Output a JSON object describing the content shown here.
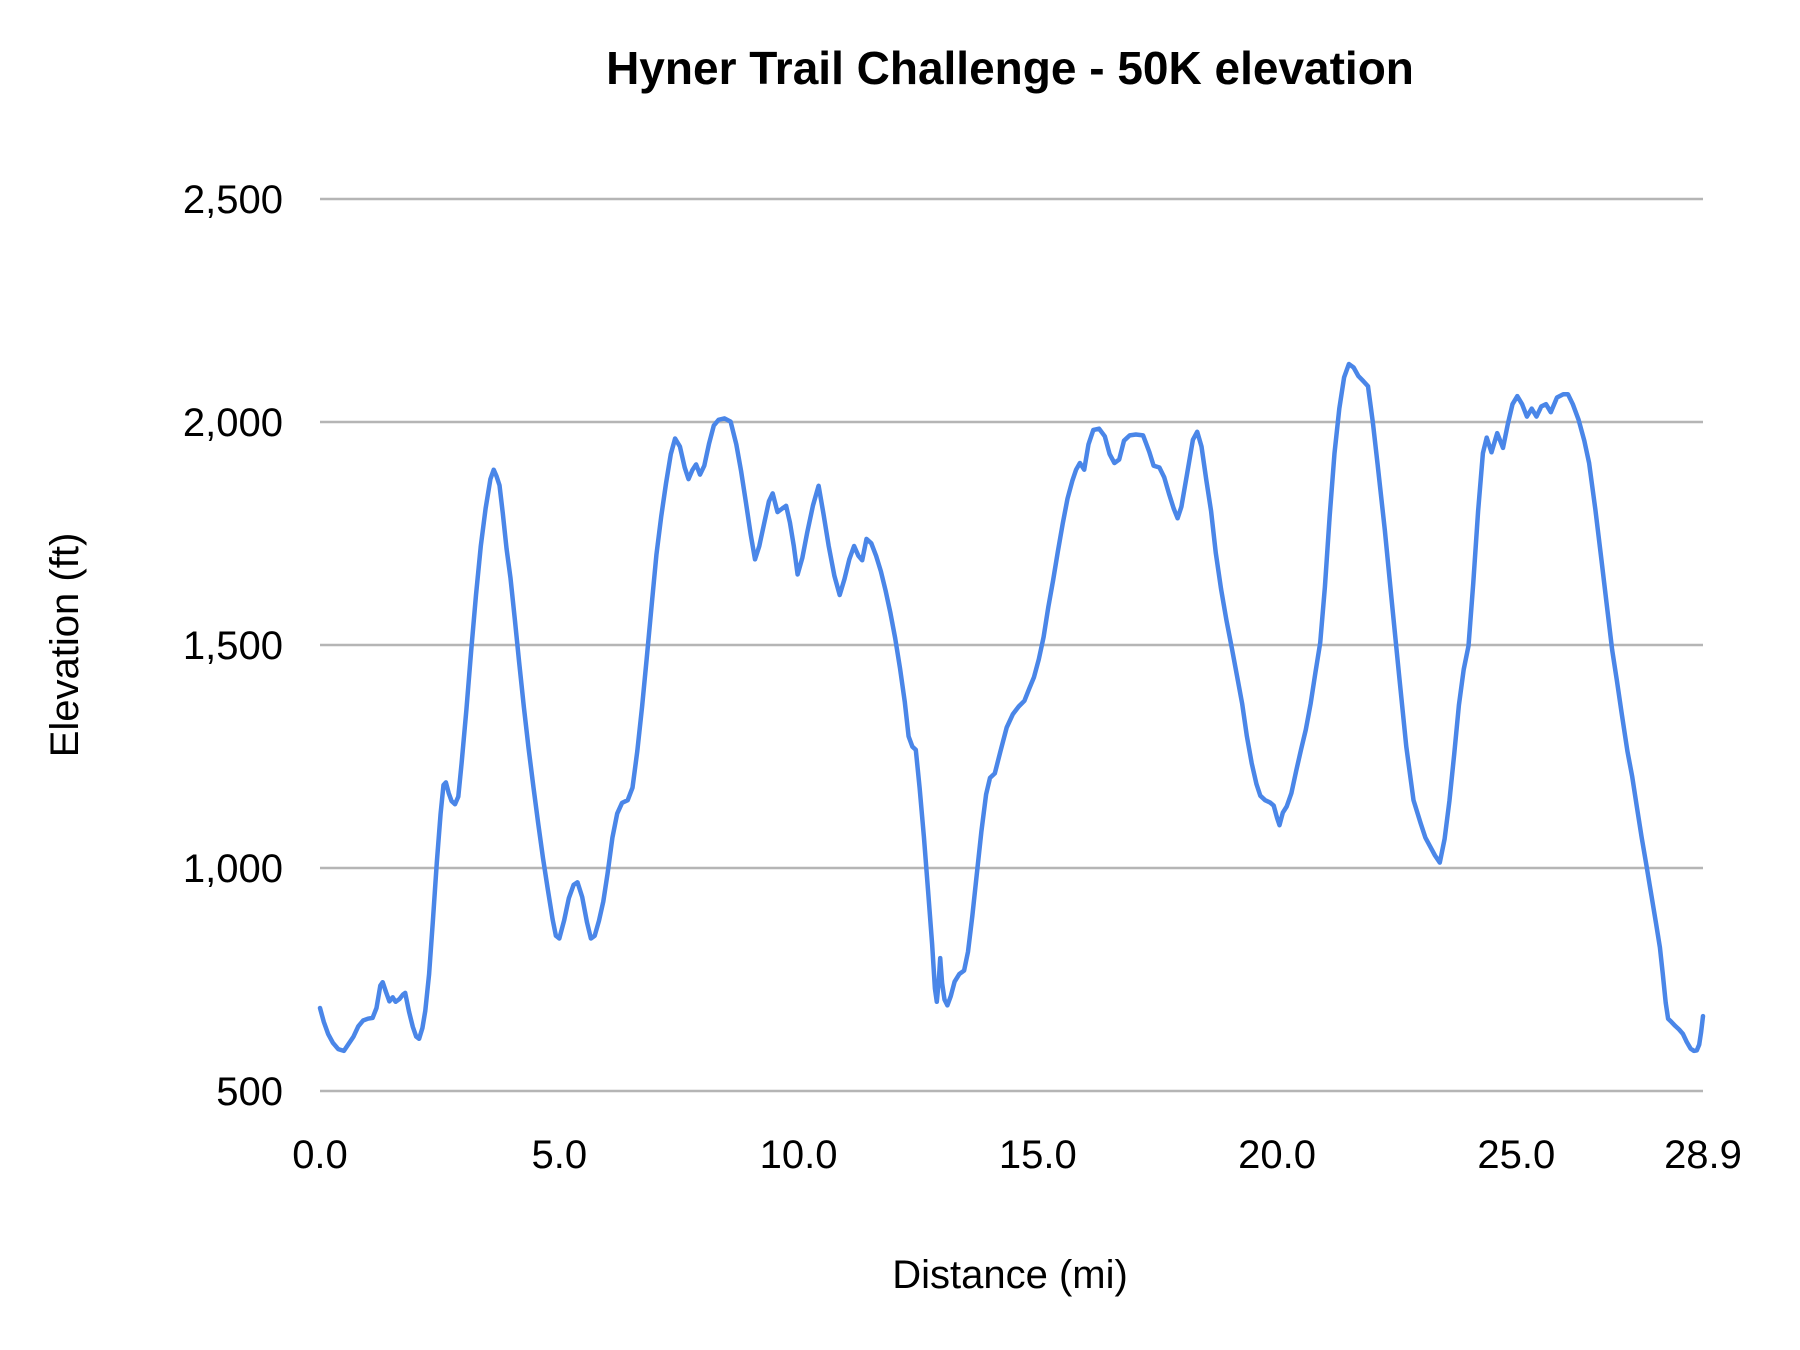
{
  "chart_data": {
    "type": "line",
    "title": "Hyner Trail Challenge - 50K elevation",
    "xlabel": "Distance (mi)",
    "ylabel": "Elevation (ft)",
    "xlim": [
      0,
      28.9
    ],
    "ylim": [
      500,
      2500
    ],
    "grid": "horizontal",
    "legend": "none",
    "colors": {
      "line": "#4a86e8",
      "gridline": "#b5b5b5",
      "text": "#000000",
      "background": "#ffffff"
    },
    "x_ticks": [
      {
        "value": 0,
        "label": "0.0"
      },
      {
        "value": 5,
        "label": "5.0"
      },
      {
        "value": 10,
        "label": "10.0"
      },
      {
        "value": 15,
        "label": "15.0"
      },
      {
        "value": 20,
        "label": "20.0"
      },
      {
        "value": 25,
        "label": "25.0"
      },
      {
        "value": 28.9,
        "label": "28.9"
      }
    ],
    "y_ticks": [
      {
        "value": 500,
        "label": "500"
      },
      {
        "value": 1000,
        "label": "1,000"
      },
      {
        "value": 1500,
        "label": "1,500"
      },
      {
        "value": 2000,
        "label": "2,000"
      },
      {
        "value": 2500,
        "label": "2,500"
      }
    ],
    "series": [
      {
        "name": "elevation",
        "points": [
          [
            0.0,
            686
          ],
          [
            0.08,
            655
          ],
          [
            0.17,
            628
          ],
          [
            0.27,
            608
          ],
          [
            0.38,
            594
          ],
          [
            0.5,
            590
          ],
          [
            0.6,
            606
          ],
          [
            0.7,
            622
          ],
          [
            0.8,
            645
          ],
          [
            0.9,
            658
          ],
          [
            1.0,
            662
          ],
          [
            1.1,
            664
          ],
          [
            1.18,
            686
          ],
          [
            1.26,
            736
          ],
          [
            1.31,
            744
          ],
          [
            1.38,
            722
          ],
          [
            1.45,
            701
          ],
          [
            1.52,
            710
          ],
          [
            1.58,
            700
          ],
          [
            1.66,
            706
          ],
          [
            1.73,
            716
          ],
          [
            1.78,
            720
          ],
          [
            1.86,
            678
          ],
          [
            1.94,
            644
          ],
          [
            2.01,
            622
          ],
          [
            2.07,
            617
          ],
          [
            2.14,
            641
          ],
          [
            2.2,
            680
          ],
          [
            2.28,
            762
          ],
          [
            2.36,
            882
          ],
          [
            2.44,
            1012
          ],
          [
            2.52,
            1122
          ],
          [
            2.58,
            1186
          ],
          [
            2.63,
            1192
          ],
          [
            2.69,
            1168
          ],
          [
            2.75,
            1150
          ],
          [
            2.82,
            1143
          ],
          [
            2.89,
            1160
          ],
          [
            2.96,
            1235
          ],
          [
            3.06,
            1355
          ],
          [
            3.16,
            1488
          ],
          [
            3.26,
            1612
          ],
          [
            3.36,
            1722
          ],
          [
            3.46,
            1806
          ],
          [
            3.56,
            1872
          ],
          [
            3.63,
            1893
          ],
          [
            3.69,
            1878
          ],
          [
            3.75,
            1858
          ],
          [
            3.82,
            1795
          ],
          [
            3.9,
            1715
          ],
          [
            3.98,
            1650
          ],
          [
            4.07,
            1558
          ],
          [
            4.16,
            1462
          ],
          [
            4.26,
            1360
          ],
          [
            4.36,
            1268
          ],
          [
            4.46,
            1182
          ],
          [
            4.56,
            1100
          ],
          [
            4.66,
            1022
          ],
          [
            4.76,
            952
          ],
          [
            4.86,
            885
          ],
          [
            4.93,
            848
          ],
          [
            5.0,
            842
          ],
          [
            5.1,
            882
          ],
          [
            5.2,
            932
          ],
          [
            5.3,
            962
          ],
          [
            5.38,
            968
          ],
          [
            5.48,
            935
          ],
          [
            5.58,
            878
          ],
          [
            5.66,
            842
          ],
          [
            5.74,
            848
          ],
          [
            5.83,
            882
          ],
          [
            5.92,
            925
          ],
          [
            6.01,
            988
          ],
          [
            6.11,
            1068
          ],
          [
            6.21,
            1122
          ],
          [
            6.31,
            1146
          ],
          [
            6.43,
            1152
          ],
          [
            6.53,
            1180
          ],
          [
            6.63,
            1262
          ],
          [
            6.73,
            1362
          ],
          [
            6.83,
            1472
          ],
          [
            6.93,
            1588
          ],
          [
            7.03,
            1702
          ],
          [
            7.13,
            1788
          ],
          [
            7.23,
            1862
          ],
          [
            7.33,
            1928
          ],
          [
            7.42,
            1963
          ],
          [
            7.52,
            1945
          ],
          [
            7.62,
            1898
          ],
          [
            7.7,
            1872
          ],
          [
            7.78,
            1892
          ],
          [
            7.86,
            1905
          ],
          [
            7.94,
            1882
          ],
          [
            8.03,
            1902
          ],
          [
            8.13,
            1952
          ],
          [
            8.23,
            1992
          ],
          [
            8.33,
            2005
          ],
          [
            8.45,
            2008
          ],
          [
            8.58,
            2001
          ],
          [
            8.7,
            1950
          ],
          [
            8.8,
            1890
          ],
          [
            8.9,
            1820
          ],
          [
            9.0,
            1748
          ],
          [
            9.09,
            1692
          ],
          [
            9.18,
            1722
          ],
          [
            9.28,
            1772
          ],
          [
            9.38,
            1822
          ],
          [
            9.46,
            1840
          ],
          [
            9.56,
            1798
          ],
          [
            9.66,
            1806
          ],
          [
            9.74,
            1812
          ],
          [
            9.82,
            1775
          ],
          [
            9.9,
            1722
          ],
          [
            9.98,
            1658
          ],
          [
            10.08,
            1696
          ],
          [
            10.18,
            1752
          ],
          [
            10.3,
            1812
          ],
          [
            10.42,
            1857
          ],
          [
            10.52,
            1795
          ],
          [
            10.63,
            1722
          ],
          [
            10.75,
            1655
          ],
          [
            10.86,
            1612
          ],
          [
            10.96,
            1648
          ],
          [
            11.06,
            1692
          ],
          [
            11.16,
            1722
          ],
          [
            11.25,
            1700
          ],
          [
            11.33,
            1690
          ],
          [
            11.42,
            1738
          ],
          [
            11.52,
            1728
          ],
          [
            11.62,
            1700
          ],
          [
            11.72,
            1665
          ],
          [
            11.82,
            1622
          ],
          [
            11.92,
            1572
          ],
          [
            12.02,
            1515
          ],
          [
            12.12,
            1448
          ],
          [
            12.22,
            1372
          ],
          [
            12.3,
            1295
          ],
          [
            12.38,
            1272
          ],
          [
            12.45,
            1265
          ],
          [
            12.53,
            1180
          ],
          [
            12.62,
            1070
          ],
          [
            12.71,
            945
          ],
          [
            12.79,
            830
          ],
          [
            12.85,
            730
          ],
          [
            12.89,
            700
          ],
          [
            12.93,
            748
          ],
          [
            12.96,
            798
          ],
          [
            13.0,
            742
          ],
          [
            13.05,
            705
          ],
          [
            13.11,
            692
          ],
          [
            13.18,
            712
          ],
          [
            13.26,
            745
          ],
          [
            13.36,
            762
          ],
          [
            13.46,
            770
          ],
          [
            13.54,
            812
          ],
          [
            13.63,
            892
          ],
          [
            13.72,
            982
          ],
          [
            13.82,
            1082
          ],
          [
            13.92,
            1165
          ],
          [
            14.0,
            1202
          ],
          [
            14.1,
            1212
          ],
          [
            14.22,
            1262
          ],
          [
            14.35,
            1315
          ],
          [
            14.48,
            1345
          ],
          [
            14.6,
            1362
          ],
          [
            14.72,
            1375
          ],
          [
            14.82,
            1402
          ],
          [
            14.92,
            1428
          ],
          [
            15.02,
            1468
          ],
          [
            15.12,
            1518
          ],
          [
            15.22,
            1585
          ],
          [
            15.32,
            1645
          ],
          [
            15.42,
            1710
          ],
          [
            15.52,
            1772
          ],
          [
            15.62,
            1828
          ],
          [
            15.72,
            1868
          ],
          [
            15.8,
            1893
          ],
          [
            15.88,
            1908
          ],
          [
            15.97,
            1893
          ],
          [
            16.06,
            1950
          ],
          [
            16.16,
            1982
          ],
          [
            16.28,
            1985
          ],
          [
            16.4,
            1968
          ],
          [
            16.5,
            1928
          ],
          [
            16.6,
            1908
          ],
          [
            16.7,
            1916
          ],
          [
            16.8,
            1958
          ],
          [
            16.92,
            1970
          ],
          [
            17.05,
            1972
          ],
          [
            17.2,
            1970
          ],
          [
            17.33,
            1933
          ],
          [
            17.42,
            1902
          ],
          [
            17.54,
            1898
          ],
          [
            17.64,
            1876
          ],
          [
            17.74,
            1840
          ],
          [
            17.84,
            1806
          ],
          [
            17.92,
            1784
          ],
          [
            18.0,
            1810
          ],
          [
            18.12,
            1884
          ],
          [
            18.24,
            1960
          ],
          [
            18.33,
            1978
          ],
          [
            18.42,
            1945
          ],
          [
            18.52,
            1870
          ],
          [
            18.62,
            1800
          ],
          [
            18.72,
            1706
          ],
          [
            18.83,
            1625
          ],
          [
            18.94,
            1556
          ],
          [
            19.06,
            1490
          ],
          [
            19.16,
            1432
          ],
          [
            19.27,
            1368
          ],
          [
            19.37,
            1295
          ],
          [
            19.47,
            1235
          ],
          [
            19.57,
            1188
          ],
          [
            19.65,
            1162
          ],
          [
            19.75,
            1152
          ],
          [
            19.85,
            1147
          ],
          [
            19.93,
            1140
          ],
          [
            20.0,
            1112
          ],
          [
            20.05,
            1096
          ],
          [
            20.12,
            1124
          ],
          [
            20.2,
            1138
          ],
          [
            20.3,
            1168
          ],
          [
            20.4,
            1218
          ],
          [
            20.5,
            1265
          ],
          [
            20.6,
            1310
          ],
          [
            20.7,
            1368
          ],
          [
            20.8,
            1438
          ],
          [
            20.9,
            1505
          ],
          [
            21.0,
            1630
          ],
          [
            21.1,
            1790
          ],
          [
            21.2,
            1930
          ],
          [
            21.3,
            2030
          ],
          [
            21.4,
            2100
          ],
          [
            21.5,
            2130
          ],
          [
            21.6,
            2122
          ],
          [
            21.7,
            2103
          ],
          [
            21.8,
            2092
          ],
          [
            21.9,
            2080
          ],
          [
            22.0,
            2000
          ],
          [
            22.1,
            1905
          ],
          [
            22.25,
            1758
          ],
          [
            22.4,
            1595
          ],
          [
            22.55,
            1432
          ],
          [
            22.7,
            1272
          ],
          [
            22.85,
            1152
          ],
          [
            23.0,
            1100
          ],
          [
            23.1,
            1068
          ],
          [
            23.2,
            1048
          ],
          [
            23.3,
            1028
          ],
          [
            23.4,
            1012
          ],
          [
            23.5,
            1065
          ],
          [
            23.6,
            1150
          ],
          [
            23.7,
            1255
          ],
          [
            23.8,
            1365
          ],
          [
            23.9,
            1445
          ],
          [
            24.0,
            1498
          ],
          [
            24.1,
            1640
          ],
          [
            24.2,
            1800
          ],
          [
            24.3,
            1930
          ],
          [
            24.38,
            1965
          ],
          [
            24.48,
            1932
          ],
          [
            24.6,
            1975
          ],
          [
            24.72,
            1942
          ],
          [
            24.82,
            1995
          ],
          [
            24.92,
            2040
          ],
          [
            25.02,
            2058
          ],
          [
            25.12,
            2040
          ],
          [
            25.22,
            2012
          ],
          [
            25.32,
            2030
          ],
          [
            25.42,
            2012
          ],
          [
            25.52,
            2035
          ],
          [
            25.62,
            2040
          ],
          [
            25.72,
            2022
          ],
          [
            25.85,
            2055
          ],
          [
            25.98,
            2062
          ],
          [
            26.08,
            2062
          ],
          [
            26.18,
            2040
          ],
          [
            26.3,
            2005
          ],
          [
            26.42,
            1958
          ],
          [
            26.52,
            1908
          ],
          [
            26.65,
            1805
          ],
          [
            26.78,
            1690
          ],
          [
            26.9,
            1580
          ],
          [
            27.0,
            1490
          ],
          [
            27.1,
            1420
          ],
          [
            27.2,
            1348
          ],
          [
            27.32,
            1262
          ],
          [
            27.42,
            1205
          ],
          [
            27.52,
            1135
          ],
          [
            27.62,
            1068
          ],
          [
            27.72,
            1005
          ],
          [
            27.82,
            940
          ],
          [
            27.92,
            875
          ],
          [
            28.0,
            822
          ],
          [
            28.06,
            762
          ],
          [
            28.12,
            698
          ],
          [
            28.17,
            662
          ],
          [
            28.24,
            655
          ],
          [
            28.32,
            646
          ],
          [
            28.4,
            638
          ],
          [
            28.48,
            628
          ],
          [
            28.56,
            610
          ],
          [
            28.64,
            595
          ],
          [
            28.71,
            590
          ],
          [
            28.77,
            591
          ],
          [
            28.82,
            604
          ],
          [
            28.86,
            632
          ],
          [
            28.9,
            668
          ]
        ]
      }
    ]
  }
}
